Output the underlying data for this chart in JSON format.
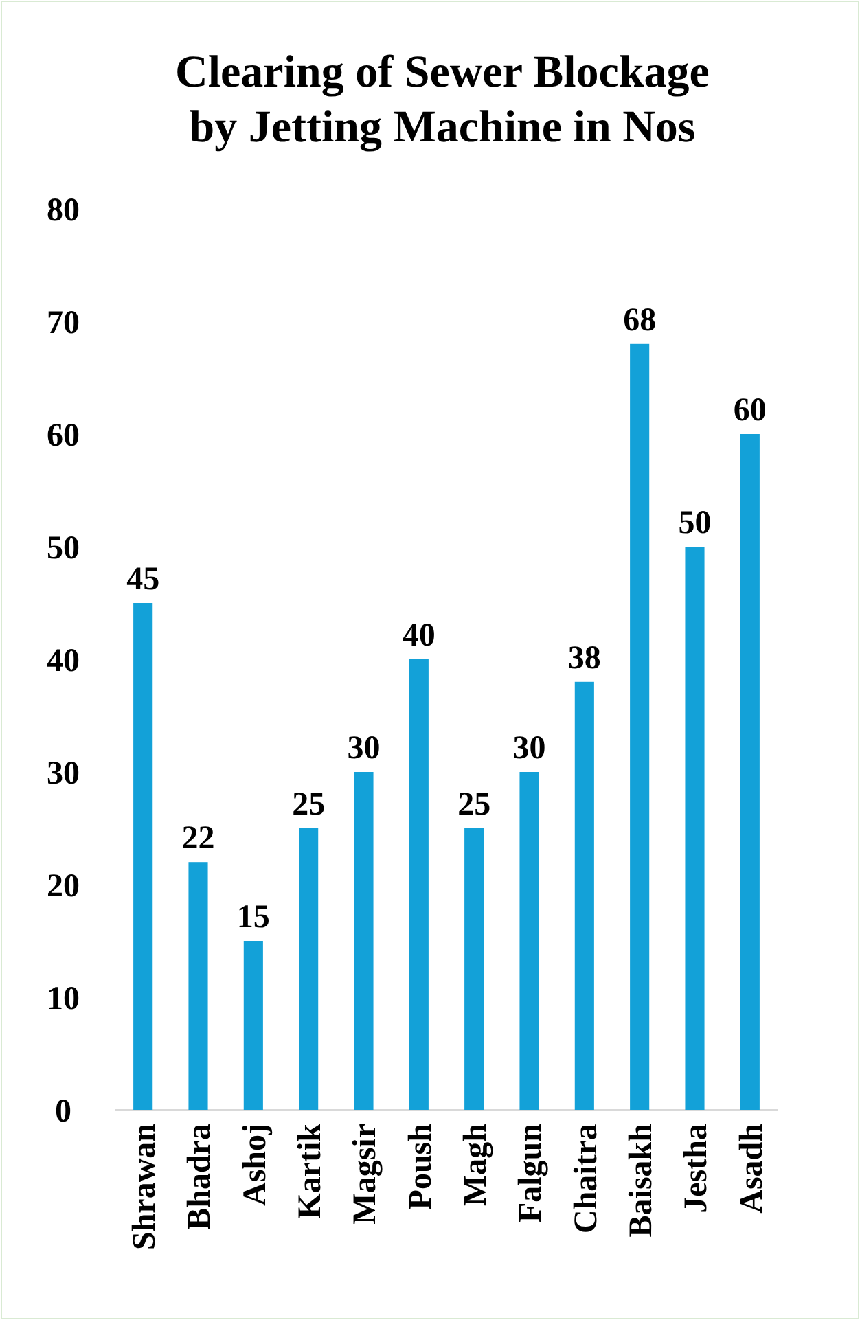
{
  "chart_data": {
    "type": "bar",
    "title": "Clearing of Sewer Blockage\nby Jetting Machine in Nos",
    "categories": [
      "Shrawan",
      "Bhadra",
      "Ashoj",
      "Kartik",
      "Magsir",
      "Poush",
      "Magh",
      "Falgun",
      "Chaitra",
      "Baisakh",
      "Jestha",
      "Asadh"
    ],
    "values": [
      45,
      22,
      15,
      25,
      30,
      40,
      25,
      30,
      38,
      68,
      50,
      60
    ],
    "color": "#13a1d8",
    "ylim": [
      0,
      80
    ],
    "yticks": [
      0,
      10,
      20,
      30,
      40,
      50,
      60,
      70,
      80
    ],
    "data_labels": true
  }
}
